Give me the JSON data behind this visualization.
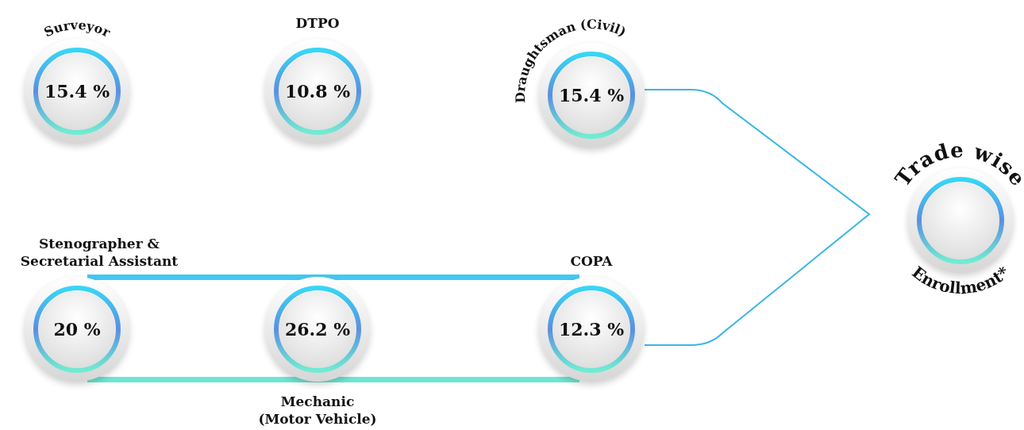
{
  "chart_data": {
    "type": "other",
    "title": "Trade wise",
    "subtitle": "Enrollment*",
    "categories": [
      "Surveyor",
      "DTPO",
      "Draughtsman (Civil)",
      "Stenographer &\nSecretarial Assistant",
      "Mechanic\n(Motor Vehicle)",
      "COPA"
    ],
    "values": [
      15.4,
      10.8,
      15.4,
      20,
      26.2,
      12.3
    ],
    "value_labels": [
      "15.4 %",
      "10.8 %",
      "15.4 %",
      "20 %",
      "26.2 %",
      "12.3 %"
    ]
  }
}
